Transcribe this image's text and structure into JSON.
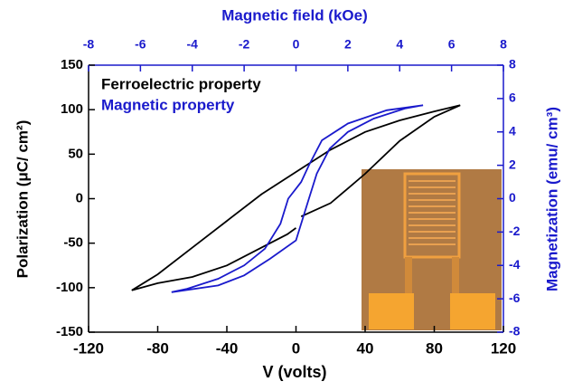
{
  "chart_data": {
    "type": "line",
    "xlabel": "V (volts)",
    "ylabel": "Polarization (μC/ cm²)",
    "x2label": "Magnetic field (kOe)",
    "y2label": "Magnetization (emu/ cm³)",
    "xlim": [
      -120,
      120
    ],
    "xticks": [
      -120,
      -80,
      -40,
      0,
      40,
      80,
      120
    ],
    "ylim": [
      -150,
      150
    ],
    "yticks": [
      -150,
      -100,
      -50,
      0,
      50,
      100,
      150
    ],
    "x2lim": [
      -8,
      8
    ],
    "x2ticks": [
      -8,
      -6,
      -4,
      -2,
      0,
      2,
      4,
      6,
      8
    ],
    "y2lim": [
      -8,
      8
    ],
    "y2ticks": [
      -8,
      -6,
      -4,
      -2,
      0,
      2,
      4,
      6,
      8
    ],
    "series": [
      {
        "name": "Ferroelectric property",
        "color": "#000000",
        "x": [
          3,
          20,
          40,
          60,
          80,
          95,
          80,
          60,
          40,
          20,
          0,
          -20,
          -40,
          -60,
          -80,
          -95,
          -80,
          -60,
          -40,
          -20,
          -5,
          0
        ],
        "values": [
          -20,
          -5,
          28,
          65,
          92,
          105,
          98,
          88,
          75,
          55,
          30,
          5,
          -25,
          -55,
          -85,
          -103,
          -95,
          -88,
          -75,
          -55,
          -40,
          -33
        ]
      },
      {
        "name": "Magnetic property",
        "color": "#1a1acc",
        "axis": "y2",
        "xaxis": "x2",
        "x": [
          4.9,
          3.5,
          2,
          1,
          0.5,
          0.2,
          -0.3,
          -0.6,
          -1.2,
          -2,
          -3,
          -4.2,
          -4.8,
          -3,
          -2,
          -1,
          0,
          0.3,
          0.5,
          0.8,
          1.3,
          2,
          3,
          4.2,
          4.9
        ],
        "values": [
          5.6,
          5.3,
          4.5,
          3.5,
          2,
          1,
          0,
          -1.5,
          -3,
          -4,
          -4.8,
          -5.4,
          -5.6,
          -5.2,
          -4.6,
          -3.6,
          -2.5,
          -1,
          0,
          1.5,
          3,
          4,
          4.8,
          5.4,
          5.6
        ]
      }
    ]
  }
}
